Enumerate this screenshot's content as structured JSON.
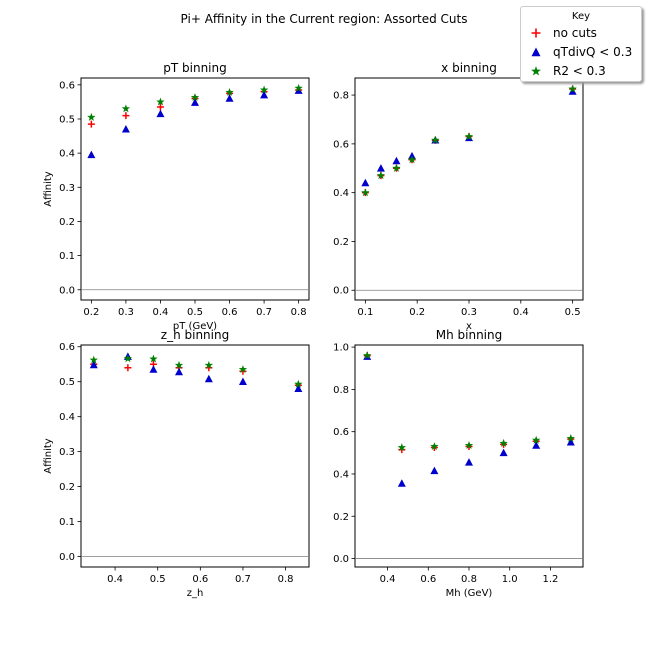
{
  "figure": {
    "title": "Pi+ Affinity in the Current region: Assorted Cuts"
  },
  "legend": {
    "title": "Key",
    "entries": [
      {
        "name": "no cuts",
        "color": "#ff0000",
        "marker": "plus"
      },
      {
        "name": "qTdivQ < 0.3",
        "color": "#0000cc",
        "marker": "triangle"
      },
      {
        "name": "R2 < 0.3",
        "color": "#008000",
        "marker": "star"
      }
    ]
  },
  "chart_data": [
    {
      "type": "scatter",
      "title": "pT binning",
      "xlabel": "pT (GeV)",
      "ylabel": "Affinity",
      "xlim": [
        0.17,
        0.83
      ],
      "ylim": [
        -0.03,
        0.62
      ],
      "xticks": [
        0.2,
        0.3,
        0.4,
        0.5,
        0.6,
        0.7,
        0.8
      ],
      "xtick_labels": [
        "0.2",
        "0.3",
        "0.4",
        "0.5",
        "0.6",
        "0.7",
        "0.8"
      ],
      "yticks": [
        0.0,
        0.1,
        0.2,
        0.3,
        0.4,
        0.5,
        0.6
      ],
      "ytick_labels": [
        "0.0",
        "0.1",
        "0.2",
        "0.3",
        "0.4",
        "0.5",
        "0.6"
      ],
      "zero_line": true,
      "series": [
        {
          "name": "no cuts",
          "x": [
            0.2,
            0.3,
            0.4,
            0.5,
            0.6,
            0.7,
            0.8
          ],
          "y": [
            0.485,
            0.51,
            0.535,
            0.56,
            0.575,
            0.58,
            0.585
          ]
        },
        {
          "name": "qTdivQ < 0.3",
          "x": [
            0.2,
            0.3,
            0.4,
            0.5,
            0.6,
            0.7,
            0.8
          ],
          "y": [
            0.395,
            0.47,
            0.515,
            0.548,
            0.56,
            0.57,
            0.583
          ]
        },
        {
          "name": "R2 < 0.3",
          "x": [
            0.2,
            0.3,
            0.4,
            0.5,
            0.6,
            0.7,
            0.8
          ],
          "y": [
            0.505,
            0.53,
            0.55,
            0.563,
            0.578,
            0.585,
            0.59
          ]
        }
      ]
    },
    {
      "type": "scatter",
      "title": "x binning",
      "xlabel": "x",
      "ylabel": "",
      "xlim": [
        0.08,
        0.52
      ],
      "ylim": [
        -0.04,
        0.87
      ],
      "xticks": [
        0.1,
        0.2,
        0.3,
        0.4,
        0.5
      ],
      "xtick_labels": [
        "0.1",
        "0.2",
        "0.3",
        "0.4",
        "0.5"
      ],
      "yticks": [
        0.0,
        0.2,
        0.4,
        0.6,
        0.8
      ],
      "ytick_labels": [
        "0.0",
        "0.2",
        "0.4",
        "0.6",
        "0.8"
      ],
      "zero_line": true,
      "series": [
        {
          "name": "no cuts",
          "x": [
            0.1,
            0.13,
            0.16,
            0.19,
            0.235,
            0.3,
            0.5
          ],
          "y": [
            0.4,
            0.47,
            0.5,
            0.535,
            0.615,
            0.63,
            0.825
          ]
        },
        {
          "name": "qTdivQ < 0.3",
          "x": [
            0.1,
            0.13,
            0.16,
            0.19,
            0.235,
            0.3,
            0.5
          ],
          "y": [
            0.44,
            0.5,
            0.53,
            0.55,
            0.615,
            0.625,
            0.815
          ]
        },
        {
          "name": "R2 < 0.3",
          "x": [
            0.1,
            0.13,
            0.16,
            0.19,
            0.235,
            0.3,
            0.5
          ],
          "y": [
            0.4,
            0.47,
            0.5,
            0.535,
            0.615,
            0.63,
            0.825
          ]
        }
      ]
    },
    {
      "type": "scatter",
      "title": "z_h binning",
      "xlabel": "z_h",
      "ylabel": "Affinity",
      "xlim": [
        0.32,
        0.855
      ],
      "ylim": [
        -0.03,
        0.605
      ],
      "xticks": [
        0.4,
        0.5,
        0.6,
        0.7,
        0.8
      ],
      "xtick_labels": [
        "0.4",
        "0.5",
        "0.6",
        "0.7",
        "0.8"
      ],
      "yticks": [
        0.0,
        0.1,
        0.2,
        0.3,
        0.4,
        0.5,
        0.6
      ],
      "ytick_labels": [
        "0.0",
        "0.1",
        "0.2",
        "0.3",
        "0.4",
        "0.5",
        "0.6"
      ],
      "zero_line": true,
      "series": [
        {
          "name": "no cuts",
          "x": [
            0.35,
            0.43,
            0.49,
            0.55,
            0.62,
            0.7,
            0.83
          ],
          "y": [
            0.55,
            0.54,
            0.55,
            0.54,
            0.54,
            0.53,
            0.49
          ]
        },
        {
          "name": "qTdivQ < 0.3",
          "x": [
            0.35,
            0.43,
            0.49,
            0.55,
            0.62,
            0.7,
            0.83
          ],
          "y": [
            0.548,
            0.572,
            0.535,
            0.528,
            0.508,
            0.5,
            0.48
          ]
        },
        {
          "name": "R2 < 0.3",
          "x": [
            0.35,
            0.43,
            0.49,
            0.55,
            0.62,
            0.7,
            0.83
          ],
          "y": [
            0.562,
            0.566,
            0.565,
            0.547,
            0.547,
            0.535,
            0.493
          ]
        }
      ]
    },
    {
      "type": "scatter",
      "title": "Mh binning",
      "xlabel": "Mh (GeV)",
      "ylabel": "",
      "xlim": [
        0.24,
        1.36
      ],
      "ylim": [
        -0.04,
        1.01
      ],
      "xticks": [
        0.4,
        0.6,
        0.8,
        1.0,
        1.2
      ],
      "xtick_labels": [
        "0.4",
        "0.6",
        "0.8",
        "1.0",
        "1.2"
      ],
      "yticks": [
        0.0,
        0.2,
        0.4,
        0.6,
        0.8,
        1.0
      ],
      "ytick_labels": [
        "0.0",
        "0.2",
        "0.4",
        "0.6",
        "0.8",
        "1.0"
      ],
      "zero_line": true,
      "series": [
        {
          "name": "no cuts",
          "x": [
            0.3,
            0.47,
            0.63,
            0.8,
            0.97,
            1.13,
            1.3
          ],
          "y": [
            0.96,
            0.515,
            0.525,
            0.53,
            0.54,
            0.555,
            0.565
          ]
        },
        {
          "name": "qTdivQ < 0.3",
          "x": [
            0.3,
            0.47,
            0.63,
            0.8,
            0.97,
            1.13,
            1.3
          ],
          "y": [
            0.955,
            0.355,
            0.415,
            0.455,
            0.5,
            0.535,
            0.55
          ]
        },
        {
          "name": "R2 < 0.3",
          "x": [
            0.3,
            0.47,
            0.63,
            0.8,
            0.97,
            1.13,
            1.3
          ],
          "y": [
            0.96,
            0.525,
            0.53,
            0.535,
            0.545,
            0.56,
            0.568
          ]
        }
      ]
    }
  ]
}
